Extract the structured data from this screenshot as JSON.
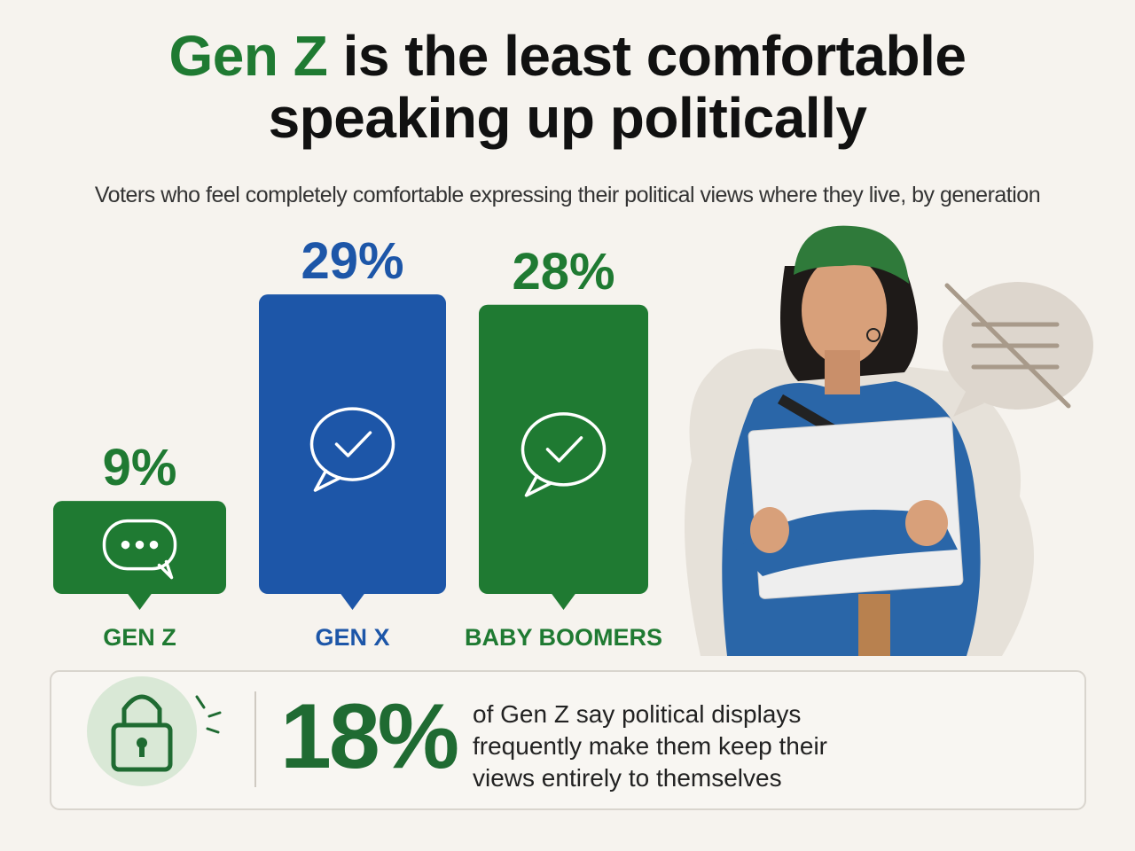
{
  "chart_data": {
    "type": "bar",
    "title_highlight": "Gen Z",
    "title": "is the least comfortable speaking up politically",
    "subtitle": "Voters who feel completely comfortable expressing their political views where they live, by generation",
    "categories": [
      "GEN Z",
      "GEN X",
      "BABY BOOMERS"
    ],
    "values": [
      9,
      29,
      28
    ],
    "value_labels": [
      "9%",
      "29%",
      "28%"
    ],
    "colors": [
      "#1f7a32",
      "#1d56a8",
      "#1f7a32"
    ]
  },
  "callout": {
    "stat": "18%",
    "text": "of Gen Z say  political displays frequently make them keep their views entirely to themselves"
  }
}
